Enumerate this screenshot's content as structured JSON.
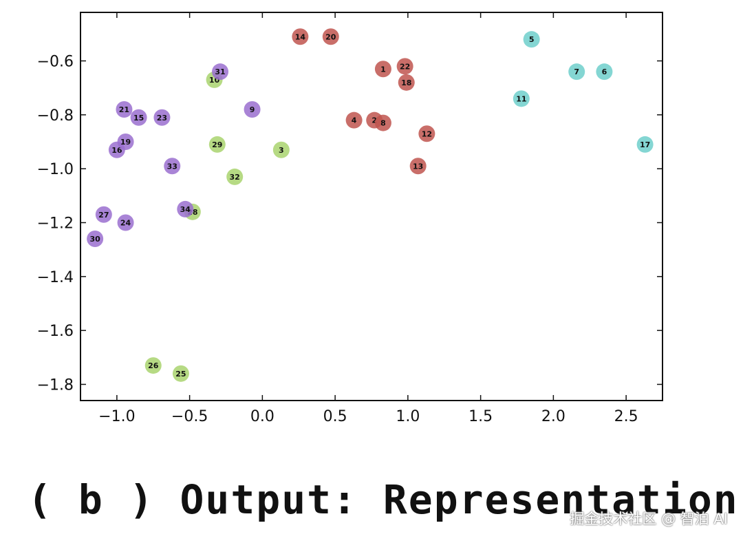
{
  "chart_data": {
    "type": "scatter",
    "xlim": [
      -1.25,
      2.75
    ],
    "ylim": [
      -1.86,
      -0.42
    ],
    "xticks": [
      -1.0,
      -0.5,
      0.0,
      0.5,
      1.0,
      1.5,
      2.0,
      2.5
    ],
    "xtick_labels": [
      "−1.0",
      "−0.5",
      "0.0",
      "0.5",
      "1.0",
      "1.5",
      "2.0",
      "2.5"
    ],
    "yticks": [
      -0.6,
      -0.8,
      -1.0,
      -1.2,
      -1.4,
      -1.6,
      -1.8
    ],
    "ytick_labels": [
      "−0.6",
      "−0.8",
      "−1.0",
      "−1.2",
      "−1.4",
      "−1.6",
      "−1.8"
    ],
    "grid": false,
    "colors": {
      "purple": "#9a6fcf",
      "green": "#a9d46e",
      "red": "#c0554f",
      "cyan": "#6fcfcb"
    },
    "points": [
      {
        "label": "1",
        "x": 0.83,
        "y": -0.63,
        "group": "red"
      },
      {
        "label": "2",
        "x": 0.77,
        "y": -0.82,
        "group": "red"
      },
      {
        "label": "3",
        "x": 0.13,
        "y": -0.93,
        "group": "green"
      },
      {
        "label": "4",
        "x": 0.63,
        "y": -0.82,
        "group": "red"
      },
      {
        "label": "5",
        "x": 1.85,
        "y": -0.52,
        "group": "cyan"
      },
      {
        "label": "6",
        "x": 2.35,
        "y": -0.64,
        "group": "cyan"
      },
      {
        "label": "7",
        "x": 2.16,
        "y": -0.64,
        "group": "cyan"
      },
      {
        "label": "8",
        "x": 0.83,
        "y": -0.83,
        "group": "red"
      },
      {
        "label": "9",
        "x": -0.07,
        "y": -0.78,
        "group": "purple"
      },
      {
        "label": "10",
        "x": -0.33,
        "y": -0.67,
        "group": "green"
      },
      {
        "label": "11",
        "x": 1.78,
        "y": -0.74,
        "group": "cyan"
      },
      {
        "label": "12",
        "x": 1.13,
        "y": -0.87,
        "group": "red"
      },
      {
        "label": "13",
        "x": 1.07,
        "y": -0.99,
        "group": "red"
      },
      {
        "label": "14",
        "x": 0.26,
        "y": -0.51,
        "group": "red"
      },
      {
        "label": "15",
        "x": -0.85,
        "y": -0.81,
        "group": "purple"
      },
      {
        "label": "16",
        "x": -1.0,
        "y": -0.93,
        "group": "purple"
      },
      {
        "label": "17",
        "x": 2.63,
        "y": -0.91,
        "group": "cyan"
      },
      {
        "label": "18",
        "x": 0.99,
        "y": -0.68,
        "group": "red"
      },
      {
        "label": "19",
        "x": -0.94,
        "y": -0.9,
        "group": "purple"
      },
      {
        "label": "20",
        "x": 0.47,
        "y": -0.51,
        "group": "red"
      },
      {
        "label": "21",
        "x": -0.95,
        "y": -0.78,
        "group": "purple"
      },
      {
        "label": "22",
        "x": 0.98,
        "y": -0.62,
        "group": "red"
      },
      {
        "label": "23",
        "x": -0.69,
        "y": -0.81,
        "group": "purple"
      },
      {
        "label": "24",
        "x": -0.94,
        "y": -1.2,
        "group": "purple"
      },
      {
        "label": "25",
        "x": -0.56,
        "y": -1.76,
        "group": "green"
      },
      {
        "label": "26",
        "x": -0.75,
        "y": -1.73,
        "group": "green"
      },
      {
        "label": "27",
        "x": -1.09,
        "y": -1.17,
        "group": "purple"
      },
      {
        "label": "28",
        "x": -0.48,
        "y": -1.16,
        "group": "green"
      },
      {
        "label": "29",
        "x": -0.31,
        "y": -0.91,
        "group": "green"
      },
      {
        "label": "30",
        "x": -1.15,
        "y": -1.26,
        "group": "purple"
      },
      {
        "label": "31",
        "x": -0.29,
        "y": -0.64,
        "group": "purple"
      },
      {
        "label": "32",
        "x": -0.19,
        "y": -1.03,
        "group": "green"
      },
      {
        "label": "33",
        "x": -0.62,
        "y": -0.99,
        "group": "purple"
      },
      {
        "label": "34",
        "x": -0.53,
        "y": -1.15,
        "group": "purple"
      }
    ]
  },
  "caption": "( b ) Output: Representation",
  "watermark": "掘金技术社区 @ 智泊 AI"
}
